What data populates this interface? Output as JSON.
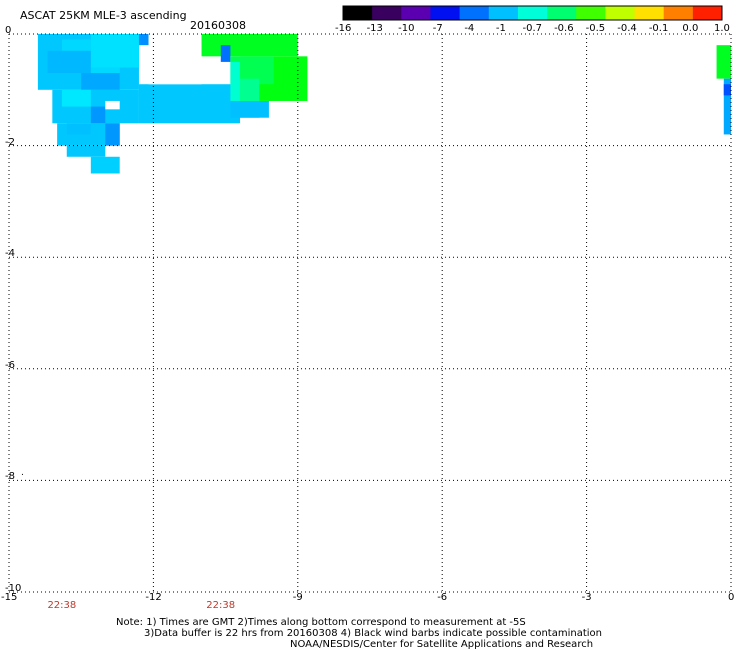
{
  "header": {
    "title": "ASCAT 25KM MLE-3 ascending",
    "date": "20160308"
  },
  "colorbar": {
    "labels": [
      "-16",
      "-13",
      "-10",
      "-7",
      "-4",
      "-1",
      "-0.7",
      "-0.6",
      "-0.5",
      "-0.4",
      "-0.1",
      "0.0",
      "1.0"
    ],
    "colors": [
      "#000000",
      "#3a0060",
      "#5a00b0",
      "#0010f0",
      "#0070ff",
      "#00c0ff",
      "#00ffd8",
      "#00ff70",
      "#40ff00",
      "#c0ff00",
      "#ffe000",
      "#ff8000",
      "#ff2000"
    ]
  },
  "map": {
    "x_ticks": [
      "-15",
      "-12",
      "-9",
      "-6",
      "-3",
      "0"
    ],
    "y_ticks": [
      "0",
      "-2",
      "-4",
      "-6",
      "-8",
      "-10"
    ],
    "x_range": [
      -15,
      0
    ],
    "y_range": [
      -10,
      0
    ],
    "time_labels": [
      {
        "text": "22:38",
        "lon": -13.9
      },
      {
        "text": "22:38",
        "lon": -10.6
      }
    ],
    "swath_cells": [
      {
        "lon0": -14.4,
        "lon1": -12.3,
        "lat0": 0,
        "lat1": -1.0,
        "color": "#00c8ff"
      },
      {
        "lon0": -13.9,
        "lon1": -12.7,
        "lat0": -0.1,
        "lat1": -0.7,
        "color": "#00d8ff"
      },
      {
        "lon0": -13.3,
        "lon1": -12.3,
        "lat0": 0,
        "lat1": -0.6,
        "color": "#00e0ff"
      },
      {
        "lon0": -12.3,
        "lon1": -12.1,
        "lat0": 0,
        "lat1": -0.2,
        "color": "#0090ff"
      },
      {
        "lon0": -14.1,
        "lon1": -12.3,
        "lat0": -1.0,
        "lat1": -1.6,
        "color": "#00c8ff"
      },
      {
        "lon0": -12.3,
        "lon1": -10.2,
        "lat0": -0.9,
        "lat1": -1.6,
        "color": "#00c8ff"
      },
      {
        "lon0": -10.9,
        "lon1": -9.8,
        "lat0": -1.0,
        "lat1": -1.5,
        "color": "#00c8ff"
      },
      {
        "lon0": -10.4,
        "lon1": -9.6,
        "lat0": -1.2,
        "lat1": -1.5,
        "color": "#00c0ff"
      },
      {
        "lon0": -14.0,
        "lon1": -12.7,
        "lat0": -1.6,
        "lat1": -2.0,
        "color": "#00c8ff"
      },
      {
        "lon0": -13.8,
        "lon1": -13.3,
        "lat0": -1.6,
        "lat1": -1.8,
        "color": "#00c0ff"
      },
      {
        "lon0": -13.3,
        "lon1": -13.0,
        "lat0": -1.3,
        "lat1": -1.6,
        "color": "#0098ff"
      },
      {
        "lon0": -13.0,
        "lon1": -12.7,
        "lat0": -1.6,
        "lat1": -2.0,
        "color": "#0098ff"
      },
      {
        "lon0": -13.5,
        "lon1": -12.7,
        "lat0": -0.7,
        "lat1": -1.0,
        "color": "#00a8ff"
      },
      {
        "lon0": -13.9,
        "lon1": -13.3,
        "lat0": -1.0,
        "lat1": -1.3,
        "color": "#00e8ff"
      },
      {
        "lon0": -14.2,
        "lon1": -13.3,
        "lat0": -0.3,
        "lat1": -0.7,
        "color": "#00b8ff"
      },
      {
        "lon0": -13.8,
        "lon1": -13.0,
        "lat0": -2.0,
        "lat1": -2.2,
        "color": "#00c8ff"
      },
      {
        "lon0": -13.3,
        "lon1": -12.7,
        "lat0": -2.2,
        "lat1": -2.5,
        "color": "#00d0ff"
      },
      {
        "lon0": -11.5,
        "lon1": -10.6,
        "lat0": 0,
        "lat1": -0.2,
        "color": "#00e0ff"
      },
      {
        "lon0": -11.0,
        "lon1": -9.0,
        "lat0": 0,
        "lat1": -0.4,
        "color": "#00ff20"
      },
      {
        "lon0": -10.6,
        "lon1": -10.4,
        "lat0": -0.2,
        "lat1": -0.5,
        "color": "#0070ff"
      },
      {
        "lon0": -10.2,
        "lon1": -8.8,
        "lat0": -0.4,
        "lat1": -1.2,
        "color": "#00ff10"
      },
      {
        "lon0": -10.4,
        "lon1": -9.5,
        "lat0": -0.4,
        "lat1": -0.9,
        "color": "#00ff50"
      },
      {
        "lon0": -10.4,
        "lon1": -10.2,
        "lat0": -0.5,
        "lat1": -1.2,
        "color": "#00ffd0"
      },
      {
        "lon0": -10.2,
        "lon1": -9.8,
        "lat0": -0.8,
        "lat1": -1.2,
        "color": "#00ff90"
      },
      {
        "lon0": -0.3,
        "lon1": 0,
        "lat0": -0.2,
        "lat1": -0.8,
        "color": "#00ff20"
      },
      {
        "lon0": -0.15,
        "lon1": 0,
        "lat0": -0.8,
        "lat1": -1.8,
        "color": "#00a8ff"
      },
      {
        "lon0": -0.15,
        "lon1": 0,
        "lat0": -0.9,
        "lat1": -1.1,
        "color": "#0050ff"
      }
    ]
  },
  "footer": {
    "note_line1": "Note: 1) Times are GMT 2)Times along bottom correspond to measurement at -5S",
    "note_line2": "3)Data buffer is 22 hrs from 20160308 4) Black wind barbs indicate possible contamination",
    "note_line3": "NOAA/NESDIS/Center for Satellite Applications and Research"
  }
}
